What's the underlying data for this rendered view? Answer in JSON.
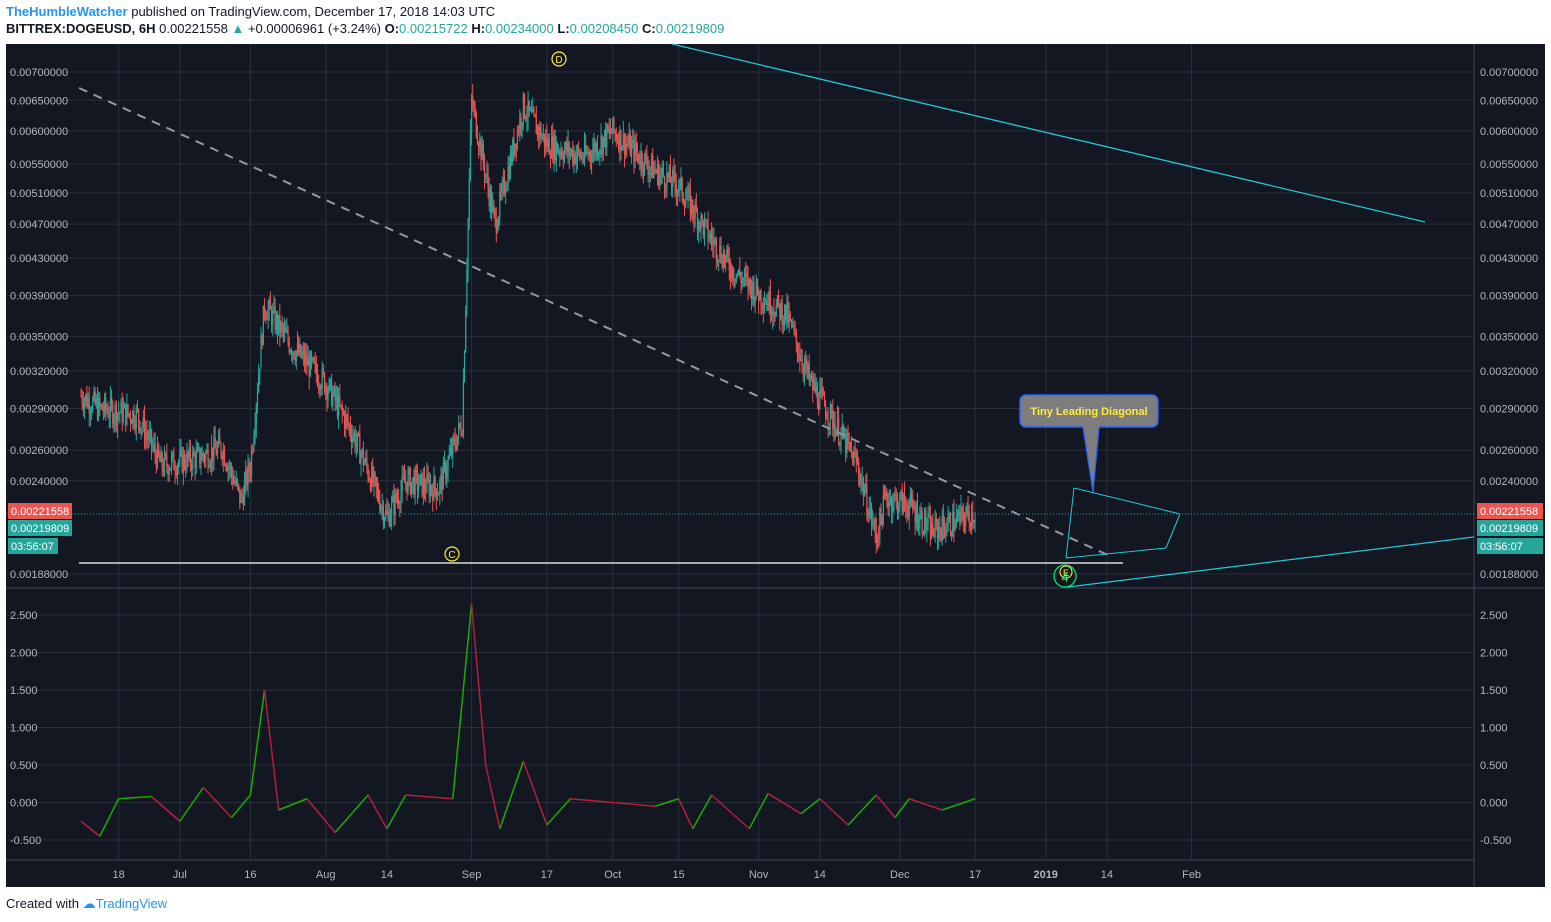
{
  "header": {
    "author": "TheHumbleWatcher",
    "published": "published on TradingView.com, December 17, 2018 14:03 UTC",
    "symbol": "BITTREX:DOGEUSD, 6H",
    "last": "0.00221558",
    "change": "+0.00006961 (+3.24%)",
    "o_label": "O:",
    "o": "0.00215722",
    "h_label": "H:",
    "h": "0.00234000",
    "l_label": "L:",
    "l": "0.00208450",
    "c_label": "C:",
    "c": "0.00219809"
  },
  "footer": {
    "created": "Created with",
    "brand": "TradingView"
  },
  "colors": {
    "background": "#131722",
    "grid": "#2a2e39",
    "up": "#26a69a",
    "down": "#ef5350",
    "trendline": "#26c6da",
    "dashed": "#9598a1",
    "callout": "#7d7d7d",
    "callout_border": "#2962ff",
    "callout_text": "#ffeb3b",
    "price_label_last": "#ef5350",
    "price_label_close": "#26a69a"
  },
  "chart_data": {
    "type": "candlestick",
    "x_ticks": [
      "18",
      "Jul",
      "16",
      "Aug",
      "14",
      "Sep",
      "17",
      "Oct",
      "15",
      "Nov",
      "14",
      "Dec",
      "17",
      "2019",
      "14",
      "Feb"
    ],
    "y_ticks": [
      "0.00700000",
      "0.00650000",
      "0.00600000",
      "0.00550000",
      "0.00510000",
      "0.00470000",
      "0.00430000",
      "0.00390000",
      "0.00350000",
      "0.00320000",
      "0.00290000",
      "0.00260000",
      "0.00240000",
      "0.00188000"
    ],
    "price_labels": {
      "last": "0.00221558",
      "close": "0.00219809",
      "countdown": "03:56:07",
      "partial": "0."
    },
    "scale": "log",
    "annotations": {
      "wave_d": "D",
      "wave_c": "C",
      "wave_e": "E",
      "wave_4": "4",
      "callout": "Tiny Leading Diagonal"
    },
    "price_path": [
      [
        "Jun 10",
        0.003
      ],
      [
        "Jun 14",
        0.0029
      ],
      [
        "Jun 22",
        0.00285
      ],
      [
        "Jun 27",
        0.0025
      ],
      [
        "Jul 5",
        0.00255
      ],
      [
        "Jul 10",
        0.00262
      ],
      [
        "Jul 14",
        0.00228
      ],
      [
        "Jul 16",
        0.0025
      ],
      [
        "Jul 19",
        0.0038
      ],
      [
        "Jul 25",
        0.0034
      ],
      [
        "Aug 1",
        0.0031
      ],
      [
        "Aug 7",
        0.0027
      ],
      [
        "Aug 14",
        0.00218
      ],
      [
        "Aug 18",
        0.0024
      ],
      [
        "Aug 25",
        0.00235
      ],
      [
        "Aug 30",
        0.0028
      ],
      [
        "Sep 1",
        0.0065
      ],
      [
        "Sep 6",
        0.0047
      ],
      [
        "Sep 12",
        0.0064
      ],
      [
        "Sep 17",
        0.0058
      ],
      [
        "Sep 25",
        0.0056
      ],
      [
        "Oct 1",
        0.006
      ],
      [
        "Oct 10",
        0.0054
      ],
      [
        "Oct 15",
        0.0052
      ],
      [
        "Oct 21",
        0.0046
      ],
      [
        "Oct 26",
        0.0042
      ],
      [
        "Oct 30",
        0.004
      ],
      [
        "Nov 7",
        0.0037
      ],
      [
        "Nov 12",
        0.0031
      ],
      [
        "Nov 17",
        0.0028
      ],
      [
        "Nov 22",
        0.0025
      ],
      [
        "Nov 26",
        0.00207
      ],
      [
        "Nov 28",
        0.0023
      ],
      [
        "Dec 3",
        0.00225
      ],
      [
        "Dec 8",
        0.0021
      ],
      [
        "Dec 12",
        0.00215
      ],
      [
        "Dec 17",
        0.00221
      ]
    ],
    "oscillator": {
      "y_ticks": [
        "2.500",
        "2.000",
        "1.500",
        "1.000",
        "0.500",
        "0.000",
        "-0.500"
      ],
      "path": [
        [
          "Jun 10",
          -0.25
        ],
        [
          "Jun 14",
          -0.45
        ],
        [
          "Jun 18",
          0.05
        ],
        [
          "Jun 25",
          0.08
        ],
        [
          "Jul 1",
          -0.25
        ],
        [
          "Jul 6",
          0.2
        ],
        [
          "Jul 12",
          -0.2
        ],
        [
          "Jul 16",
          0.1
        ],
        [
          "Jul 19",
          1.5
        ],
        [
          "Jul 22",
          -0.1
        ],
        [
          "Jul 28",
          0.05
        ],
        [
          "Aug 3",
          -0.4
        ],
        [
          "Aug 10",
          0.1
        ],
        [
          "Aug 14",
          -0.35
        ],
        [
          "Aug 18",
          0.1
        ],
        [
          "Aug 28",
          0.05
        ],
        [
          "Sep 1",
          2.65
        ],
        [
          "Sep 4",
          0.5
        ],
        [
          "Sep 7",
          -0.35
        ],
        [
          "Sep 12",
          0.55
        ],
        [
          "Sep 17",
          -0.3
        ],
        [
          "Sep 22",
          0.05
        ],
        [
          "Oct 1",
          0.0
        ],
        [
          "Oct 10",
          -0.05
        ],
        [
          "Oct 15",
          0.05
        ],
        [
          "Oct 18",
          -0.35
        ],
        [
          "Oct 22",
          0.1
        ],
        [
          "Oct 30",
          -0.35
        ],
        [
          "Nov 3",
          0.12
        ],
        [
          "Nov 10",
          -0.15
        ],
        [
          "Nov 14",
          0.05
        ],
        [
          "Nov 20",
          -0.3
        ],
        [
          "Nov 26",
          0.1
        ],
        [
          "Nov 30",
          -0.2
        ],
        [
          "Dec 3",
          0.05
        ],
        [
          "Dec 10",
          -0.1
        ],
        [
          "Dec 17",
          0.05
        ]
      ]
    }
  }
}
